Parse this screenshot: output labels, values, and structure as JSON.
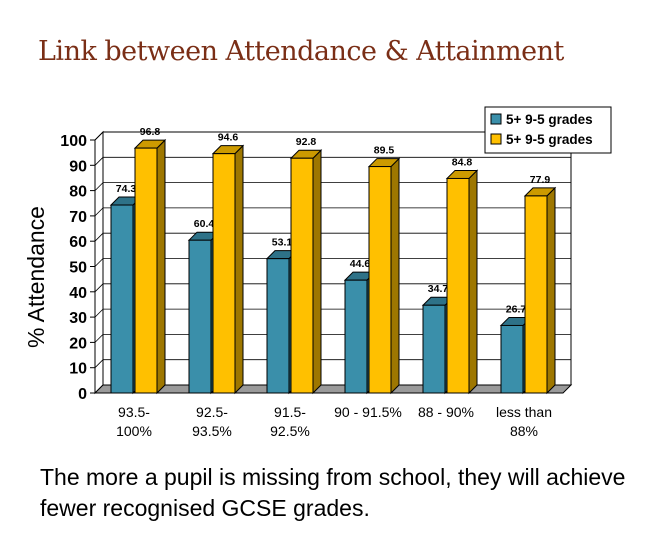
{
  "slide": {
    "title": "Link between Attendance & Attainment",
    "caption": "The more a pupil is missing from school, they will achieve fewer recognised GCSE grades."
  },
  "chart_data": {
    "type": "bar",
    "title": "",
    "xlabel": "",
    "ylabel": "% Attendance",
    "ylim": [
      0,
      100
    ],
    "yticks": [
      0,
      10,
      20,
      30,
      40,
      50,
      60,
      70,
      80,
      90,
      100
    ],
    "categories": [
      [
        "93.5-",
        "100%"
      ],
      [
        "92.5-",
        "93.5%"
      ],
      [
        "91.5-",
        "92.5%"
      ],
      [
        "90 - 91.5%"
      ],
      [
        "88 - 90%"
      ],
      [
        "less than",
        "88%"
      ]
    ],
    "series": [
      {
        "name": "5+ 9-5 grades",
        "color": "#3a8faa",
        "values": [
          74.3,
          60.4,
          53.1,
          44.6,
          34.7,
          26.7
        ],
        "labels": [
          "74.3",
          "60.4",
          "53.1",
          "44.6",
          "34.7",
          "26.7"
        ]
      },
      {
        "name": "5+ 9-5 grades",
        "color": "#ffc000",
        "values": [
          96.8,
          94.6,
          92.8,
          89.5,
          84.8,
          77.9
        ],
        "labels": [
          "96.8",
          "94.6",
          "92.8",
          "89.5",
          "84.8",
          "77.9"
        ]
      }
    ],
    "grid": true,
    "legend": "top-right",
    "style": "3d"
  }
}
